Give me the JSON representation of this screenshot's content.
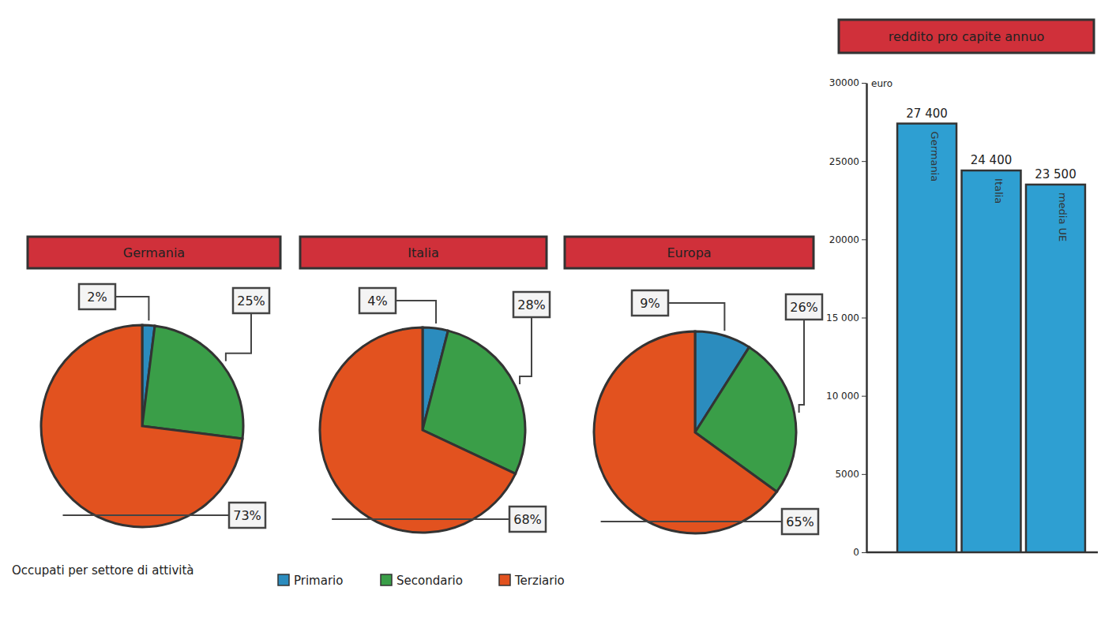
{
  "caption": "Occupati per settore di attività",
  "chart_data": [
    {
      "type": "pie",
      "title": "Germania",
      "categories": [
        "Primario",
        "Secondario",
        "Terziario"
      ],
      "values": [
        2,
        25,
        73
      ],
      "value_labels": [
        "2%",
        "25%",
        "73%"
      ],
      "colors": [
        "#2b8cbe",
        "#3a9e48",
        "#e2521f"
      ],
      "data_labels": true,
      "legend": "bottom"
    },
    {
      "type": "pie",
      "title": "Italia",
      "categories": [
        "Primario",
        "Secondario",
        "Terziario"
      ],
      "values": [
        4,
        28,
        68
      ],
      "value_labels": [
        "4%",
        "28%",
        "68%"
      ],
      "colors": [
        "#2b8cbe",
        "#3a9e48",
        "#e2521f"
      ],
      "data_labels": true
    },
    {
      "type": "pie",
      "title": "Europa",
      "categories": [
        "Primario",
        "Secondario",
        "Terziario"
      ],
      "values": [
        9,
        26,
        65
      ],
      "value_labels": [
        "9%",
        "26%",
        "65%"
      ],
      "colors": [
        "#2b8cbe",
        "#3a9e48",
        "#e2521f"
      ],
      "data_labels": true
    },
    {
      "type": "bar",
      "title": "reddito pro capite annuo",
      "y_label": "euro",
      "categories": [
        "Germania",
        "Italia",
        "media UE"
      ],
      "values": [
        27400,
        24400,
        23500
      ],
      "value_labels": [
        "27 400",
        "24 400",
        "23 500"
      ],
      "color": "#2e9fd2",
      "data_labels": true,
      "ylim": [
        0,
        30000
      ],
      "yticks": [
        0,
        5000,
        {
          "value": 10000,
          "label": "10 000"
        },
        {
          "value": 15000,
          "label": "15 000"
        },
        20000,
        25000,
        30000
      ]
    }
  ]
}
